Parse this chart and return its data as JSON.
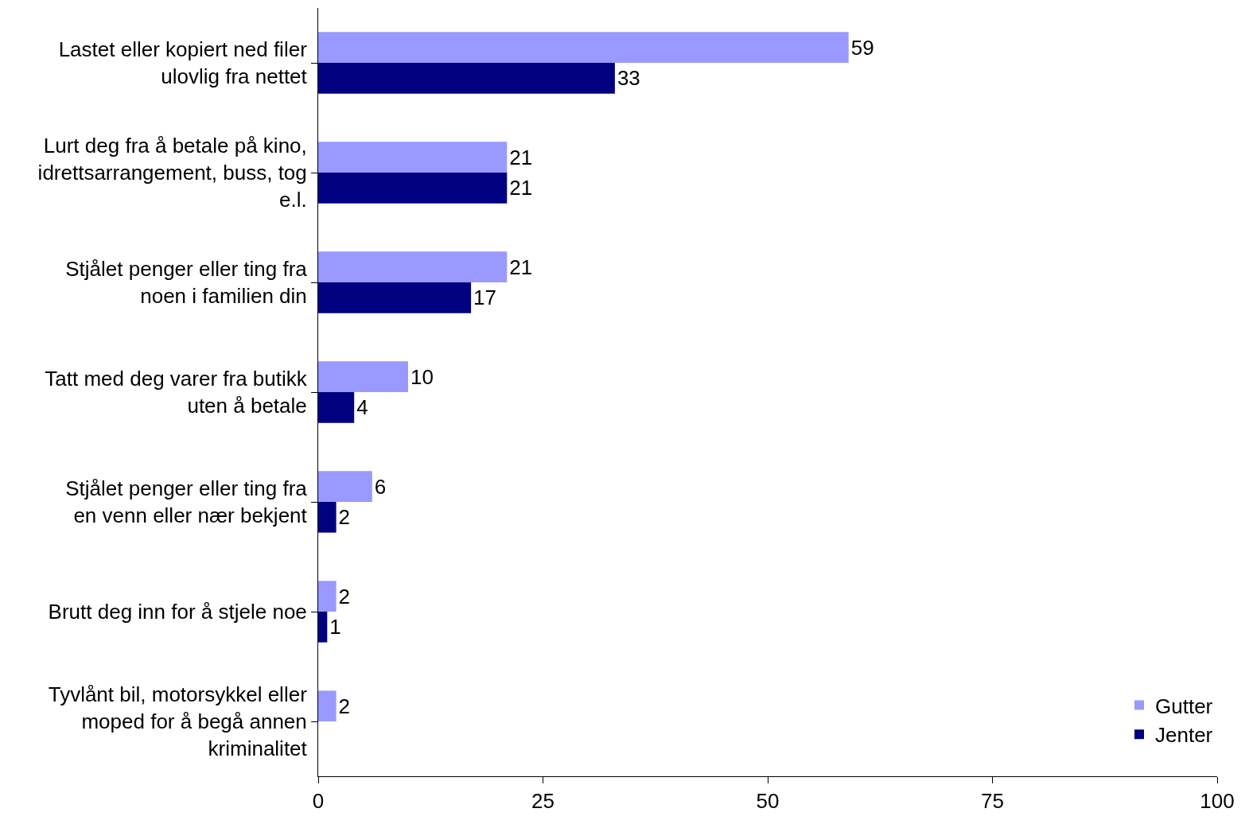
{
  "chart_data": {
    "type": "bar",
    "orientation": "horizontal",
    "categories": [
      "Lastet eller kopiert ned filer ulovlig fra nettet",
      "Lurt deg fra å betale på kino, idrettsarrangement, buss, tog e.l.",
      "Stjålet penger eller ting fra noen i familien din",
      "Tatt med deg varer fra butikk uten å betale",
      "Stjålet penger eller ting fra en venn eller nær bekjent",
      "Brutt deg inn for å stjele noe",
      "Tyvlånt bil, motorsykkel eller moped for å begå annen kriminalitet"
    ],
    "series": [
      {
        "name": "Gutter",
        "color": "#9999ff",
        "values": [
          59,
          21,
          21,
          10,
          6,
          2,
          2
        ]
      },
      {
        "name": "Jenter",
        "color": "#000080",
        "values": [
          33,
          21,
          17,
          4,
          2,
          1,
          null
        ]
      }
    ],
    "xlim": [
      0,
      100
    ],
    "xticks": [
      0,
      25,
      50,
      75,
      100
    ],
    "data_labels": true,
    "legend": "bottom right"
  }
}
